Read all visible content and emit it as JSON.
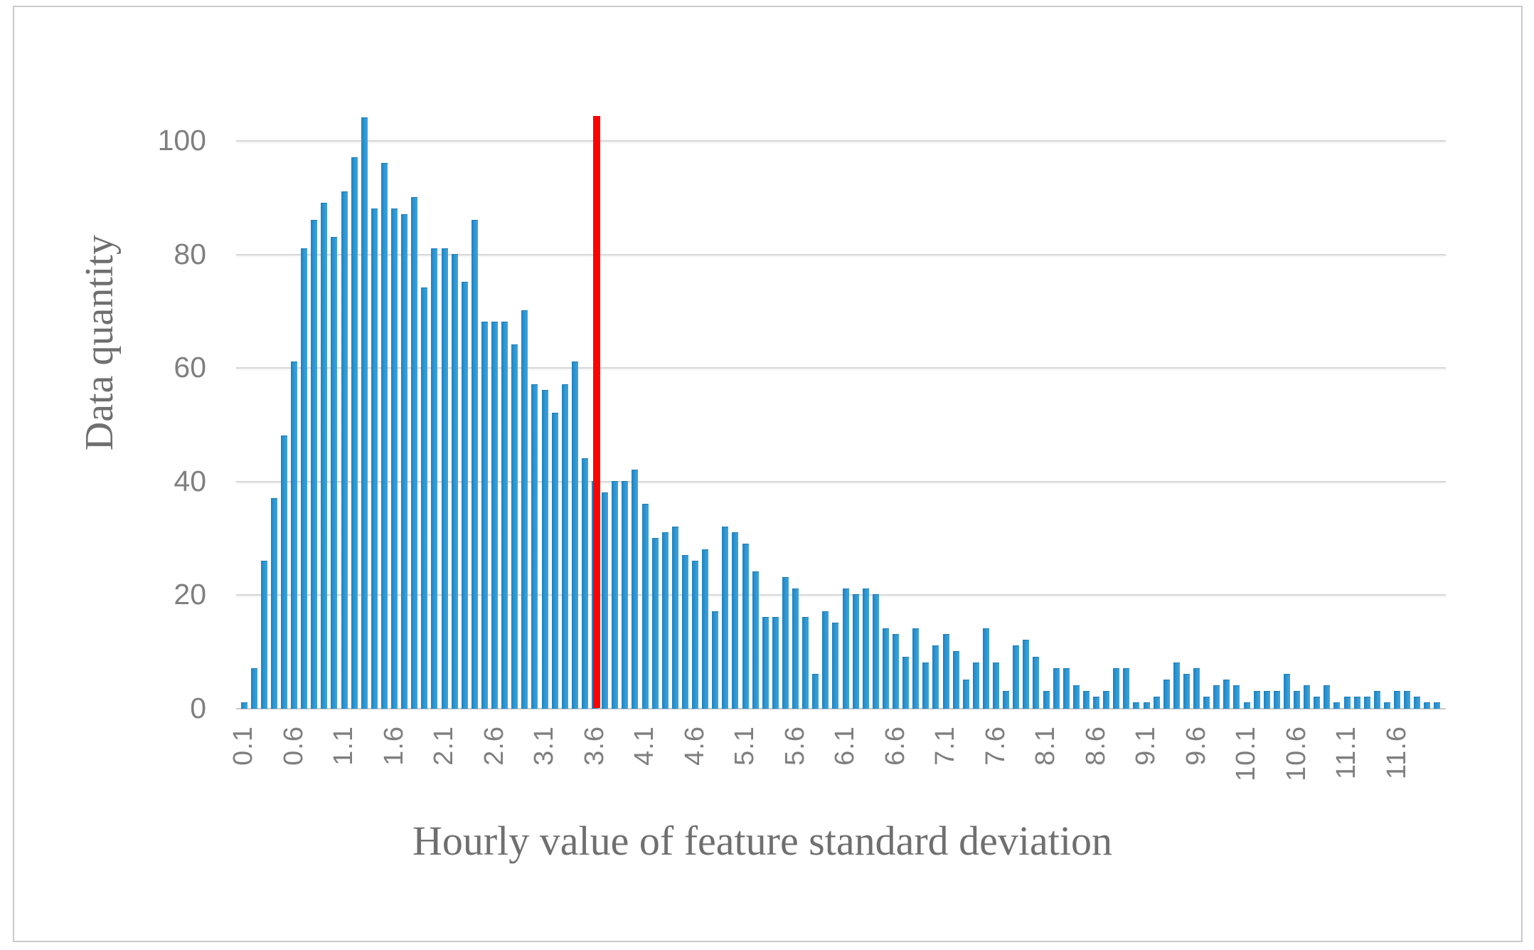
{
  "chart_data": {
    "type": "bar",
    "title": "",
    "xlabel": "Hourly value of feature standard deviation",
    "ylabel": "Data quantity",
    "x_start": 0.1,
    "x_step": 0.1,
    "x": [
      0.1,
      0.2,
      0.3,
      0.4,
      0.5,
      0.6,
      0.7,
      0.8,
      0.9,
      1.0,
      1.1,
      1.2,
      1.3,
      1.4,
      1.5,
      1.6,
      1.7,
      1.8,
      1.9,
      2.0,
      2.1,
      2.2,
      2.3,
      2.4,
      2.5,
      2.6,
      2.7,
      2.8,
      2.9,
      3.0,
      3.1,
      3.2,
      3.3,
      3.4,
      3.5,
      3.6,
      3.7,
      3.8,
      3.9,
      4.0,
      4.1,
      4.2,
      4.3,
      4.4,
      4.5,
      4.6,
      4.7,
      4.8,
      4.9,
      5.0,
      5.1,
      5.2,
      5.3,
      5.4,
      5.5,
      5.6,
      5.7,
      5.8,
      5.9,
      6.0,
      6.1,
      6.2,
      6.3,
      6.4,
      6.5,
      6.6,
      6.7,
      6.8,
      6.9,
      7.0,
      7.1,
      7.2,
      7.3,
      7.4,
      7.5,
      7.6,
      7.7,
      7.8,
      7.9,
      8.0,
      8.1,
      8.2,
      8.3,
      8.4,
      8.5,
      8.6,
      8.7,
      8.8,
      8.9,
      9.0,
      9.1,
      9.2,
      9.3,
      9.4,
      9.5,
      9.6,
      9.7,
      9.8,
      9.9,
      10.0,
      10.1,
      10.2,
      10.3,
      10.4,
      10.5,
      10.6,
      10.7,
      10.8,
      10.9,
      11.0,
      11.1,
      11.2,
      11.3,
      11.4,
      11.5,
      11.6,
      11.7,
      11.8,
      11.9,
      12.0
    ],
    "values": [
      1,
      7,
      26,
      37,
      48,
      61,
      81,
      86,
      89,
      83,
      91,
      97,
      104,
      88,
      96,
      88,
      87,
      90,
      74,
      81,
      81,
      80,
      75,
      86,
      68,
      68,
      68,
      64,
      70,
      57,
      56,
      52,
      57,
      61,
      44,
      40,
      38,
      40,
      40,
      42,
      36,
      30,
      31,
      32,
      27,
      26,
      28,
      17,
      32,
      31,
      29,
      24,
      16,
      16,
      23,
      21,
      16,
      6,
      17,
      15,
      21,
      20,
      21,
      20,
      14,
      13,
      9,
      14,
      8,
      11,
      13,
      10,
      5,
      8,
      14,
      8,
      3,
      11,
      12,
      9,
      3,
      7,
      7,
      4,
      3,
      2,
      3,
      7,
      7,
      1,
      1,
      2,
      5,
      8,
      6,
      7,
      2,
      4,
      5,
      4,
      1,
      3,
      3,
      3,
      6,
      3,
      4,
      2,
      4,
      1,
      2,
      2,
      2,
      3,
      1,
      3,
      3,
      2,
      1,
      1
    ],
    "x_tick_labels": [
      "0.1",
      "0.6",
      "1.1",
      "1.6",
      "2.1",
      "2.6",
      "3.1",
      "3.6",
      "4.1",
      "4.6",
      "5.1",
      "5.6",
      "6.1",
      "6.6",
      "7.1",
      "7.6",
      "8.1",
      "8.6",
      "9.1",
      "9.6",
      "10.1",
      "10.6",
      "11.1",
      "11.6"
    ],
    "x_tick_every_n_bars": 5,
    "y_tick_labels": [
      "0",
      "20",
      "40",
      "60",
      "80",
      "100"
    ],
    "ylim": [
      0,
      110
    ],
    "grid": "horizontal",
    "legend": "none",
    "annotations": [
      {
        "type": "vline",
        "x": 3.6,
        "label": "threshold",
        "color": "#fe0101"
      }
    ],
    "colors": {
      "bar": "#2d95d0",
      "bar_gradient_left": "#2181bd",
      "bar_gradient_right": "#3ba5e2",
      "threshold_line": "#fe0101",
      "gridline": "#d6d6d6",
      "tick_text": "#7f7f7f",
      "axis_title_text": "#6f6f6f",
      "frame_border": "#c9c9c9"
    }
  }
}
